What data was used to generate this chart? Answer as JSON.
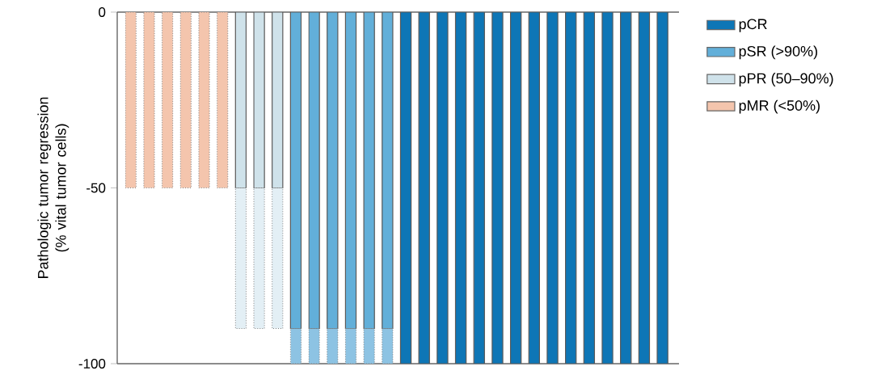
{
  "chart_data": {
    "type": "bar",
    "stacked": true,
    "ylabel": "Pathologic tumor regression (% vital tumor cells)",
    "categories": [
      null,
      null,
      null,
      null,
      null,
      null,
      null,
      null,
      null,
      null,
      null,
      null,
      null,
      null,
      null,
      null,
      null,
      null,
      null,
      null,
      null,
      null,
      null,
      null,
      null,
      null,
      null,
      null,
      null,
      null
    ],
    "series": [
      {
        "name": "pCR",
        "color": "#0e76b6",
        "values": [
          null,
          null,
          null,
          null,
          null,
          null,
          null,
          null,
          null,
          null,
          null,
          null,
          null,
          null,
          null,
          -100,
          -100,
          -100,
          -100,
          -100,
          -100,
          -100,
          -100,
          -100,
          -100,
          -100,
          -100,
          -100,
          -100,
          -100
        ]
      },
      {
        "name": "pSR (>90%)",
        "color": "#62afd9",
        "values": [
          null,
          null,
          null,
          null,
          null,
          null,
          null,
          null,
          null,
          -90,
          -90,
          -90,
          -90,
          -90,
          -90,
          null,
          null,
          null,
          null,
          null,
          null,
          null,
          null,
          null,
          null,
          null,
          null,
          null,
          null,
          null
        ]
      },
      {
        "name": "pPR (50–90%)",
        "color": "#cfe2ea",
        "values": [
          null,
          null,
          null,
          null,
          null,
          null,
          -50,
          -50,
          -50,
          null,
          null,
          null,
          null,
          null,
          null,
          null,
          null,
          null,
          null,
          null,
          null,
          null,
          null,
          null,
          null,
          null,
          null,
          null,
          null,
          null
        ]
      },
      {
        "name": "pMR (<50%)",
        "color": "#f4c5ad",
        "line_style": "dotted",
        "values": [
          -50,
          -50,
          -50,
          -50,
          -50,
          -50,
          null,
          null,
          null,
          null,
          null,
          null,
          null,
          null,
          null,
          null,
          null,
          null,
          null,
          null,
          null,
          null,
          null,
          null,
          null,
          null,
          null,
          null,
          null,
          null
        ]
      },
      {
        "color": "#e3eff5",
        "line_style": "dotted",
        "values": [
          null,
          null,
          null,
          null,
          null,
          null,
          -40,
          -40,
          -40,
          null,
          null,
          null,
          null,
          null,
          null,
          null,
          null,
          null,
          null,
          null,
          null,
          null,
          null,
          null,
          null,
          null,
          null,
          null,
          null,
          null
        ]
      },
      {
        "color": "#8dc3e3",
        "line_style": "dotted",
        "values": [
          null,
          null,
          null,
          null,
          null,
          null,
          null,
          null,
          null,
          -10,
          -10,
          -10,
          -10,
          -10,
          -10,
          null,
          null,
          null,
          null,
          null,
          null,
          null,
          null,
          null,
          null,
          null,
          null,
          null,
          null,
          null
        ]
      }
    ],
    "ylim": [
      -100,
      0
    ],
    "yticks": [
      -100,
      -50,
      0
    ],
    "tick_labels": "y",
    "legend": "right"
  }
}
